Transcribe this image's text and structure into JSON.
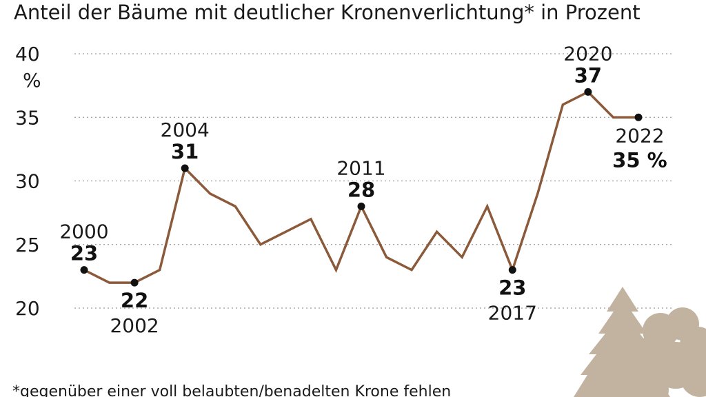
{
  "chart_data": {
    "type": "line",
    "title": "Anteil der Bäume mit deutlicher Kronenverlichtung* in Prozent",
    "ylabel": "%",
    "ylim": [
      20,
      40
    ],
    "yticks": [
      "40",
      "35",
      "30",
      "25",
      "20"
    ],
    "x": [
      2000,
      2001,
      2002,
      2003,
      2004,
      2005,
      2006,
      2007,
      2008,
      2009,
      2010,
      2011,
      2012,
      2013,
      2014,
      2015,
      2016,
      2017,
      2018,
      2019,
      2020,
      2021,
      2022
    ],
    "series": [
      {
        "values": [
          23,
          22,
          22,
          23,
          31,
          29,
          28,
          25,
          26,
          27,
          23,
          28,
          24,
          23,
          26,
          24,
          28,
          23,
          29,
          36,
          37,
          35,
          35
        ]
      }
    ],
    "line_color": "#8a5a3a",
    "annotations": [
      {
        "year": "2000",
        "value": "23"
      },
      {
        "year": "2002",
        "value": "22"
      },
      {
        "year": "2004",
        "value": "31"
      },
      {
        "year": "2011",
        "value": "28"
      },
      {
        "year": "2017",
        "value": "23"
      },
      {
        "year": "2020",
        "value": "37"
      },
      {
        "year": "2022",
        "value": "35 %"
      }
    ],
    "footnote": "*gegenüber einer voll belaubten/benadelten Krone fehlen",
    "grid": true
  }
}
